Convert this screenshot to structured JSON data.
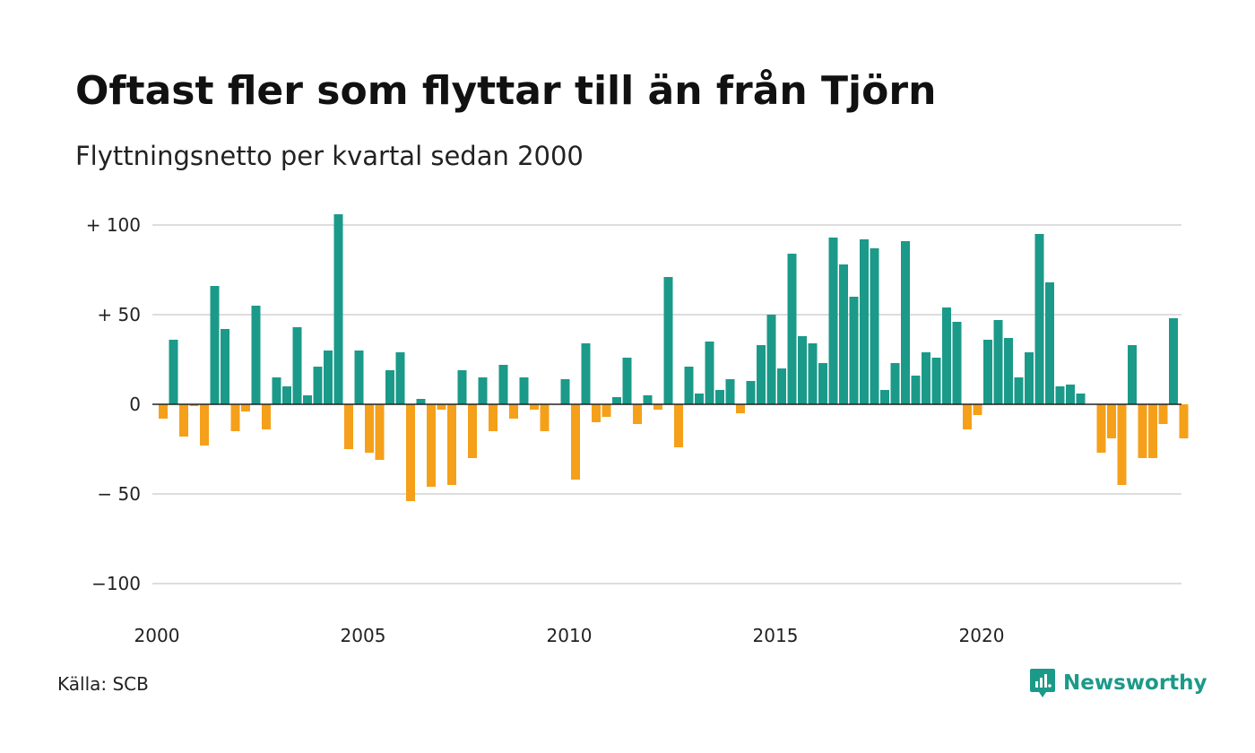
{
  "header": {
    "title": "Oftast fler som flyttar till än från Tjörn",
    "subtitle": "Flyttningsnetto per kvartal sedan 2000"
  },
  "footer": {
    "source": "Källa: SCB",
    "brand": "Newsworthy",
    "brand_icon": "newsworthy-logo-icon"
  },
  "colors": {
    "positive": "#1b9a89",
    "negative": "#f5a01a",
    "grid": "#dddddd",
    "zero_line": "#222222",
    "brand": "#1b9a89"
  },
  "chart_data": {
    "type": "bar",
    "x_start": "2000 Q1",
    "x_end": "2024 Q4",
    "interval": "quarter",
    "values": [
      -8,
      36,
      -18,
      -1,
      -23,
      66,
      42,
      -15,
      -4,
      55,
      -14,
      15,
      10,
      43,
      5,
      21,
      30,
      106,
      -25,
      30,
      -27,
      -31,
      19,
      29,
      -54,
      3,
      -46,
      -3,
      -45,
      19,
      -30,
      15,
      -15,
      22,
      -8,
      15,
      -3,
      -15,
      0,
      14,
      -42,
      34,
      -10,
      -7,
      4,
      26,
      -11,
      5,
      -3,
      71,
      -24,
      21,
      6,
      35,
      8,
      14,
      -5,
      13,
      33,
      50,
      20,
      84,
      38,
      34,
      23,
      93,
      78,
      60,
      92,
      87,
      8,
      23,
      91,
      16,
      29,
      26,
      54,
      46,
      -14,
      -6,
      36,
      47,
      37,
      15,
      29,
      95,
      68,
      10,
      11,
      6,
      0,
      -27,
      -19,
      -45,
      33,
      -30,
      -30,
      -11,
      48,
      -19
    ],
    "x_tick_labels": [
      "2000",
      "2005",
      "2010",
      "2015",
      "2020"
    ],
    "y_ticks": [
      100,
      50,
      0,
      -50,
      -100
    ],
    "y_tick_labels": [
      "+ 100",
      "+  50",
      "0",
      "− 50",
      "−100"
    ],
    "ylim": [
      -100,
      100
    ],
    "grid": true,
    "legend": "none"
  }
}
